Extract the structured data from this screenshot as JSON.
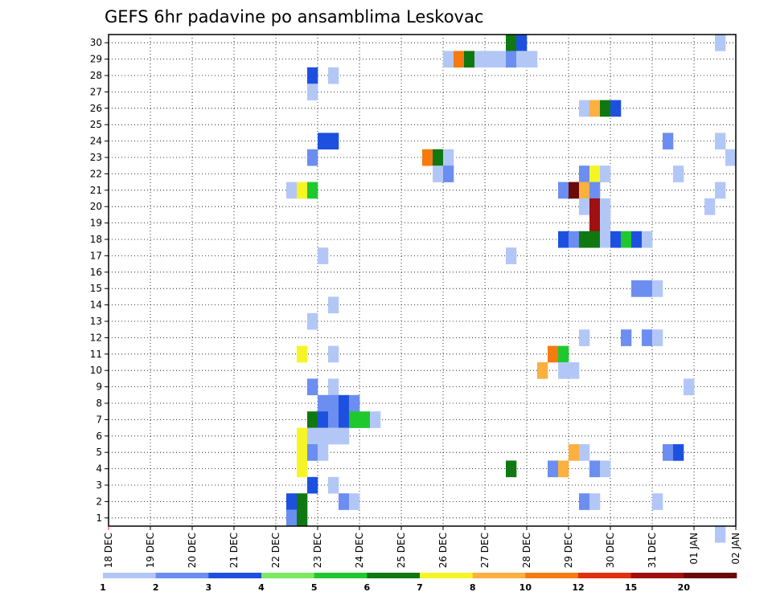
{
  "chart_data": {
    "type": "heatmap",
    "title": "GEFS 6hr padavine po ansamblima Leskovac",
    "xlabel": "",
    "ylabel": "",
    "x_tick_labels": [
      "18 DEC",
      "19 DEC",
      "20 DEC",
      "21 DEC",
      "22 DEC",
      "23 DEC",
      "24 DEC",
      "25 DEC",
      "26 DEC",
      "27 DEC",
      "28 DEC",
      "29 DEC",
      "30 DEC",
      "31 DEC",
      "01 JAN",
      "02 JAN"
    ],
    "x_unit": "days from 18 DEC 00Z",
    "xlim": [
      0,
      15
    ],
    "y_tick_labels": [
      "1",
      "2",
      "3",
      "4",
      "5",
      "6",
      "7",
      "8",
      "9",
      "10",
      "11",
      "12",
      "13",
      "14",
      "15",
      "16",
      "17",
      "18",
      "19",
      "20",
      "21",
      "22",
      "23",
      "24",
      "25",
      "26",
      "27",
      "28",
      "29",
      "30"
    ],
    "ylim": [
      0.5,
      30.5
    ],
    "grid": true,
    "colorbar": {
      "placement": "bottom",
      "labels": [
        "1",
        "2",
        "3",
        "4",
        "5",
        "6",
        "7",
        "8",
        "10",
        "12",
        "15",
        "20"
      ],
      "colors": [
        "#b3c7f7",
        "#6b8ef0",
        "#1e50e0",
        "#7de860",
        "#20c830",
        "#107810",
        "#f5f525",
        "#fbb040",
        "#f57a10",
        "#e03010",
        "#a01010",
        "#6b0808"
      ]
    },
    "cells": [
      {
        "member": 30,
        "x": 9.75,
        "v": 6
      },
      {
        "member": 30,
        "x": 10.0,
        "v": 3
      },
      {
        "member": 30,
        "x": 14.75,
        "v": 1
      },
      {
        "member": 29,
        "x": 8.25,
        "v": 1
      },
      {
        "member": 29,
        "x": 8.5,
        "v": 10
      },
      {
        "member": 29,
        "x": 8.75,
        "v": 6
      },
      {
        "member": 29,
        "x": 9.0,
        "v": 1
      },
      {
        "member": 29,
        "x": 9.25,
        "v": 1
      },
      {
        "member": 29,
        "x": 9.5,
        "v": 1
      },
      {
        "member": 29,
        "x": 9.75,
        "v": 2
      },
      {
        "member": 29,
        "x": 10.0,
        "v": 1
      },
      {
        "member": 29,
        "x": 10.25,
        "v": 1
      },
      {
        "member": 28,
        "x": 5.0,
        "v": 3
      },
      {
        "member": 28,
        "x": 5.5,
        "v": 1
      },
      {
        "member": 27,
        "x": 5.0,
        "v": 1
      },
      {
        "member": 26,
        "x": 11.5,
        "v": 1
      },
      {
        "member": 26,
        "x": 11.75,
        "v": 8
      },
      {
        "member": 26,
        "x": 12.0,
        "v": 6
      },
      {
        "member": 26,
        "x": 12.25,
        "v": 3
      },
      {
        "member": 24,
        "x": 5.25,
        "v": 3
      },
      {
        "member": 24,
        "x": 5.5,
        "v": 3
      },
      {
        "member": 24,
        "x": 13.5,
        "v": 2
      },
      {
        "member": 24,
        "x": 14.75,
        "v": 1
      },
      {
        "member": 23,
        "x": 5.0,
        "v": 2
      },
      {
        "member": 23,
        "x": 7.75,
        "v": 10
      },
      {
        "member": 23,
        "x": 8.0,
        "v": 6
      },
      {
        "member": 23,
        "x": 8.25,
        "v": 1
      },
      {
        "member": 23,
        "x": 15.0,
        "v": 1
      },
      {
        "member": 22,
        "x": 8.0,
        "v": 1
      },
      {
        "member": 22,
        "x": 8.25,
        "v": 2
      },
      {
        "member": 22,
        "x": 11.5,
        "v": 2
      },
      {
        "member": 22,
        "x": 11.75,
        "v": 7
      },
      {
        "member": 22,
        "x": 12.0,
        "v": 1
      },
      {
        "member": 22,
        "x": 13.75,
        "v": 1
      },
      {
        "member": 21,
        "x": 4.5,
        "v": 1
      },
      {
        "member": 21,
        "x": 4.75,
        "v": 7
      },
      {
        "member": 21,
        "x": 5.0,
        "v": 5
      },
      {
        "member": 21,
        "x": 11.0,
        "v": 2
      },
      {
        "member": 21,
        "x": 11.25,
        "v": 20
      },
      {
        "member": 21,
        "x": 11.5,
        "v": 8
      },
      {
        "member": 21,
        "x": 11.75,
        "v": 2
      },
      {
        "member": 21,
        "x": 14.75,
        "v": 1
      },
      {
        "member": 20,
        "x": 11.5,
        "v": 1
      },
      {
        "member": 20,
        "x": 11.75,
        "v": 15
      },
      {
        "member": 20,
        "x": 12.0,
        "v": 1
      },
      {
        "member": 20,
        "x": 14.5,
        "v": 1
      },
      {
        "member": 19,
        "x": 11.75,
        "v": 15
      },
      {
        "member": 19,
        "x": 12.0,
        "v": 1
      },
      {
        "member": 18,
        "x": 11.0,
        "v": 3
      },
      {
        "member": 18,
        "x": 11.25,
        "v": 2
      },
      {
        "member": 18,
        "x": 11.5,
        "v": 6
      },
      {
        "member": 18,
        "x": 11.75,
        "v": 6
      },
      {
        "member": 18,
        "x": 12.0,
        "v": 1
      },
      {
        "member": 18,
        "x": 12.25,
        "v": 3
      },
      {
        "member": 18,
        "x": 12.5,
        "v": 5
      },
      {
        "member": 18,
        "x": 12.75,
        "v": 3
      },
      {
        "member": 18,
        "x": 13.0,
        "v": 1
      },
      {
        "member": 17,
        "x": 5.25,
        "v": 1
      },
      {
        "member": 17,
        "x": 9.75,
        "v": 1
      },
      {
        "member": 15,
        "x": 12.75,
        "v": 2
      },
      {
        "member": 15,
        "x": 13.0,
        "v": 2
      },
      {
        "member": 15,
        "x": 13.25,
        "v": 1
      },
      {
        "member": 14,
        "x": 5.5,
        "v": 1
      },
      {
        "member": 13,
        "x": 5.0,
        "v": 1
      },
      {
        "member": 12,
        "x": 11.5,
        "v": 1
      },
      {
        "member": 12,
        "x": 12.5,
        "v": 2
      },
      {
        "member": 12,
        "x": 13.0,
        "v": 2
      },
      {
        "member": 12,
        "x": 13.25,
        "v": 1
      },
      {
        "member": 11,
        "x": 4.75,
        "v": 7
      },
      {
        "member": 11,
        "x": 5.5,
        "v": 1
      },
      {
        "member": 11,
        "x": 10.75,
        "v": 10
      },
      {
        "member": 11,
        "x": 11.0,
        "v": 5
      },
      {
        "member": 10,
        "x": 10.5,
        "v": 8
      },
      {
        "member": 10,
        "x": 11.0,
        "v": 1
      },
      {
        "member": 10,
        "x": 11.25,
        "v": 1
      },
      {
        "member": 9,
        "x": 5.0,
        "v": 2
      },
      {
        "member": 9,
        "x": 5.5,
        "v": 1
      },
      {
        "member": 9,
        "x": 14.0,
        "v": 1
      },
      {
        "member": 8,
        "x": 5.25,
        "v": 2
      },
      {
        "member": 8,
        "x": 5.5,
        "v": 2
      },
      {
        "member": 8,
        "x": 5.75,
        "v": 3
      },
      {
        "member": 8,
        "x": 6.0,
        "v": 2
      },
      {
        "member": 7,
        "x": 5.0,
        "v": 6
      },
      {
        "member": 7,
        "x": 5.25,
        "v": 3
      },
      {
        "member": 7,
        "x": 5.5,
        "v": 2
      },
      {
        "member": 7,
        "x": 5.75,
        "v": 3
      },
      {
        "member": 7,
        "x": 6.0,
        "v": 5
      },
      {
        "member": 7,
        "x": 6.25,
        "v": 5
      },
      {
        "member": 7,
        "x": 6.5,
        "v": 1
      },
      {
        "member": 6,
        "x": 4.75,
        "v": 7
      },
      {
        "member": 6,
        "x": 5.0,
        "v": 1
      },
      {
        "member": 6,
        "x": 5.25,
        "v": 1
      },
      {
        "member": 6,
        "x": 5.5,
        "v": 1
      },
      {
        "member": 6,
        "x": 5.75,
        "v": 1
      },
      {
        "member": 5,
        "x": 4.75,
        "v": 7
      },
      {
        "member": 5,
        "x": 5.0,
        "v": 2
      },
      {
        "member": 5,
        "x": 5.25,
        "v": 1
      },
      {
        "member": 5,
        "x": 11.25,
        "v": 8
      },
      {
        "member": 5,
        "x": 11.5,
        "v": 1
      },
      {
        "member": 5,
        "x": 13.5,
        "v": 2
      },
      {
        "member": 5,
        "x": 13.75,
        "v": 3
      },
      {
        "member": 4,
        "x": 4.75,
        "v": 7
      },
      {
        "member": 4,
        "x": 9.75,
        "v": 6
      },
      {
        "member": 4,
        "x": 10.75,
        "v": 2
      },
      {
        "member": 4,
        "x": 11.0,
        "v": 8
      },
      {
        "member": 4,
        "x": 11.75,
        "v": 2
      },
      {
        "member": 4,
        "x": 12.0,
        "v": 1
      },
      {
        "member": 3,
        "x": 5.0,
        "v": 3
      },
      {
        "member": 3,
        "x": 5.5,
        "v": 1
      },
      {
        "member": 2,
        "x": 4.5,
        "v": 3
      },
      {
        "member": 2,
        "x": 4.75,
        "v": 6
      },
      {
        "member": 2,
        "x": 5.75,
        "v": 2
      },
      {
        "member": 2,
        "x": 6.0,
        "v": 1
      },
      {
        "member": 2,
        "x": 11.5,
        "v": 2
      },
      {
        "member": 2,
        "x": 11.75,
        "v": 1
      },
      {
        "member": 2,
        "x": 13.25,
        "v": 1
      },
      {
        "member": 1,
        "x": 4.5,
        "v": 2
      },
      {
        "member": 1,
        "x": 4.75,
        "v": 6
      },
      {
        "member": 0,
        "x": 14.75,
        "v": 1
      }
    ]
  }
}
